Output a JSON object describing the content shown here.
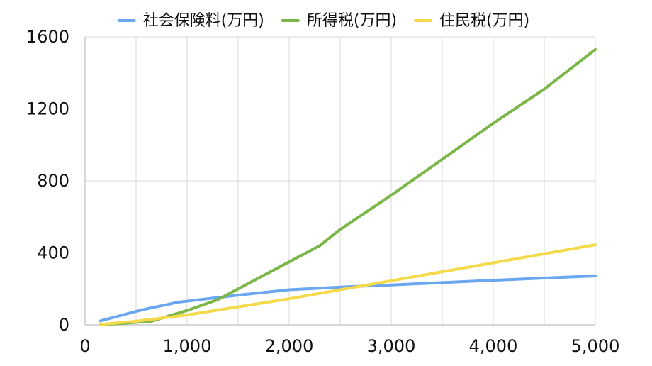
{
  "chart_data": {
    "type": "line",
    "title": "",
    "xlabel": "",
    "ylabel": "",
    "xlim": [
      0,
      5000
    ],
    "ylim": [
      0,
      1600
    ],
    "x_ticks": [
      0,
      1000,
      2000,
      3000,
      4000,
      5000
    ],
    "x_tick_labels": [
      "0",
      "1,000",
      "2,000",
      "3,000",
      "4,000",
      "5,000"
    ],
    "y_ticks": [
      0,
      400,
      800,
      1200,
      1600
    ],
    "y_tick_labels": [
      "0",
      "400",
      "800",
      "1200",
      "1600"
    ],
    "x_minor_gridlines": [
      500,
      1500,
      2500,
      3500,
      4500
    ],
    "grid": true,
    "legend_position": "top",
    "series": [
      {
        "name": "社会保険料(万円)",
        "color": "#6aa7f0",
        "x": [
          150,
          500,
          650,
          800,
          900,
          1200,
          1500,
          2000,
          2500,
          3000,
          3500,
          4000,
          4500,
          5000
        ],
        "y": [
          22,
          75,
          95,
          112,
          125,
          145,
          165,
          195,
          210,
          222,
          235,
          248,
          260,
          272
        ]
      },
      {
        "name": "所得税(万円)",
        "color": "#7ab648",
        "x": [
          150,
          650,
          1000,
          1300,
          1600,
          2000,
          2300,
          2500,
          3000,
          3500,
          4000,
          4500,
          5000
        ],
        "y": [
          0,
          20,
          80,
          140,
          230,
          350,
          440,
          530,
          720,
          920,
          1120,
          1310,
          1530
        ]
      },
      {
        "name": "住民税(万円)",
        "color": "#f4d94a",
        "x": [
          150,
          500,
          1000,
          1500,
          2000,
          2500,
          3000,
          3500,
          4000,
          4500,
          5000
        ],
        "y": [
          2,
          20,
          55,
          100,
          145,
          195,
          245,
          295,
          345,
          395,
          445
        ]
      }
    ]
  }
}
